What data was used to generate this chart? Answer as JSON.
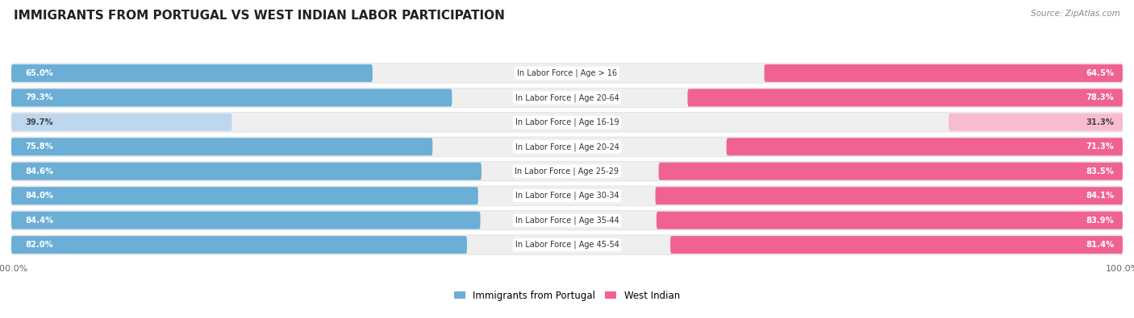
{
  "title": "IMMIGRANTS FROM PORTUGAL VS WEST INDIAN LABOR PARTICIPATION",
  "source": "Source: ZipAtlas.com",
  "categories": [
    "In Labor Force | Age > 16",
    "In Labor Force | Age 20-64",
    "In Labor Force | Age 16-19",
    "In Labor Force | Age 20-24",
    "In Labor Force | Age 25-29",
    "In Labor Force | Age 30-34",
    "In Labor Force | Age 35-44",
    "In Labor Force | Age 45-54"
  ],
  "portugal_values": [
    65.0,
    79.3,
    39.7,
    75.8,
    84.6,
    84.0,
    84.4,
    82.0
  ],
  "west_indian_values": [
    64.5,
    78.3,
    31.3,
    71.3,
    83.5,
    84.1,
    83.9,
    81.4
  ],
  "portugal_color": "#6BAED6",
  "portugal_color_light": "#BDD7EE",
  "west_indian_color": "#F06292",
  "west_indian_color_light": "#F8BBD0",
  "bg_row_color": "#EFEFEF",
  "bg_color": "#FFFFFF",
  "max_value": 100.0,
  "title_fontsize": 11,
  "bar_height": 0.72,
  "legend_portugal_label": "Immigrants from Portugal",
  "legend_west_indian_label": "West Indian"
}
